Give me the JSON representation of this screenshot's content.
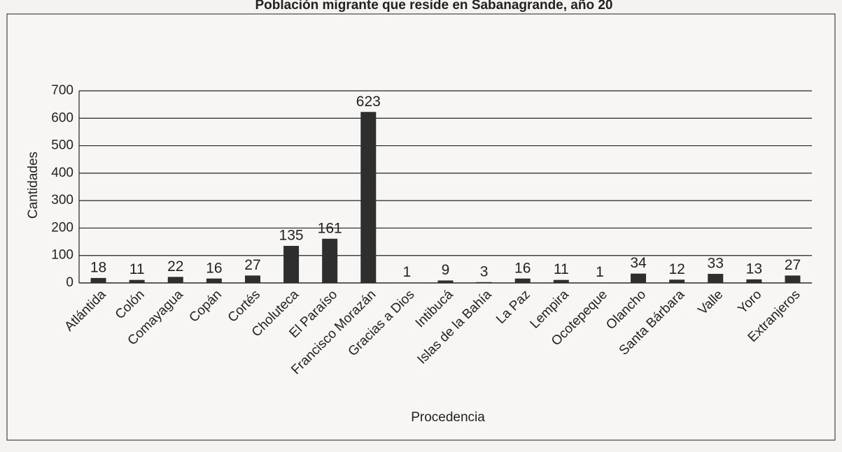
{
  "chart_data": {
    "type": "bar",
    "title": "Población migrante que reside en Sabanagrande, año 20",
    "x_label": "Procedencia",
    "y_label": "Cantidades",
    "categories": [
      "Atlántida",
      "Colón",
      "Comayagua",
      "Copán",
      "Cortés",
      "Choluteca",
      "El Paraíso",
      "Francisco Morazán",
      "Gracias a Dios",
      "Intibucá",
      "Islas de la Bahía",
      "La Paz",
      "Lempira",
      "Ocotepeque",
      "Olancho",
      "Santa Bárbara",
      "Valle",
      "Yoro",
      "Extranjeros"
    ],
    "values": [
      18,
      11,
      22,
      16,
      27,
      135,
      161,
      623,
      1,
      9,
      3,
      16,
      11,
      1,
      34,
      12,
      33,
      13,
      27
    ],
    "color": "#2e2e2e",
    "ylim": [
      0,
      700
    ],
    "yticks": [
      0,
      100,
      200,
      300,
      400,
      500,
      600,
      700
    ],
    "grid": true
  }
}
